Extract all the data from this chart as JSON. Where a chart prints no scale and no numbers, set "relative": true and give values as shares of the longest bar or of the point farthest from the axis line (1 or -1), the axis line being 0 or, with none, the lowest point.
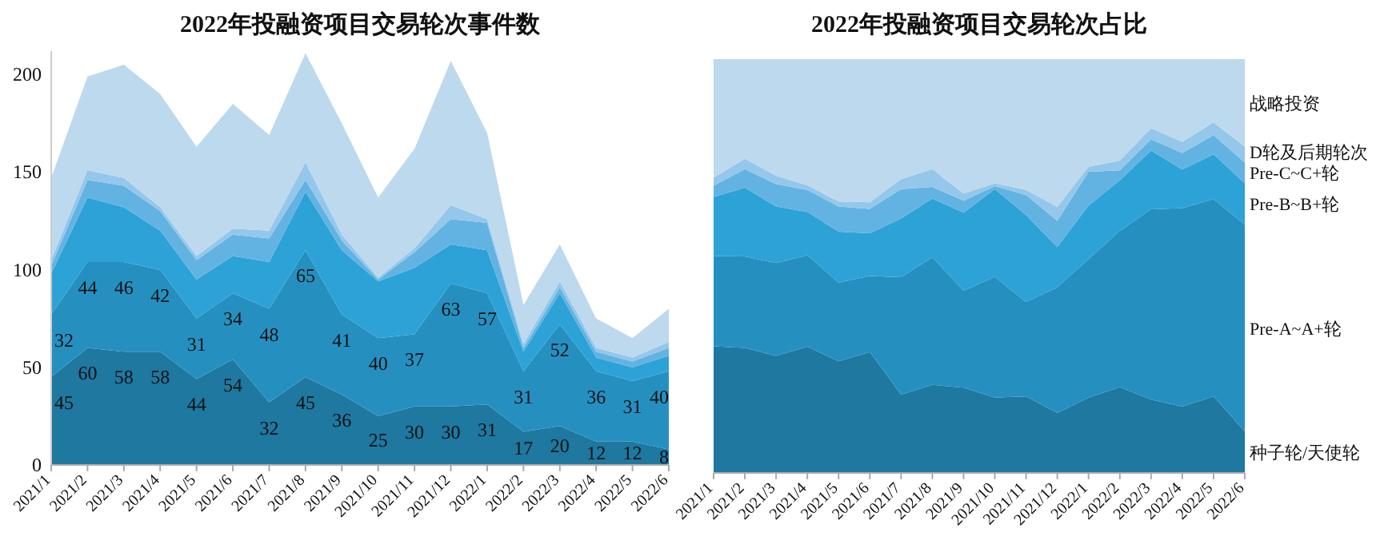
{
  "chart_data": [
    {
      "type": "area",
      "title": "2022年投融资项目交易轮次事件数",
      "stacked": true,
      "categories": [
        "2021/1",
        "2021/2",
        "2021/3",
        "2021/4",
        "2021/5",
        "2021/6",
        "2021/7",
        "2021/8",
        "2021/9",
        "2021/10",
        "2021/11",
        "2021/12",
        "2022/1",
        "2022/2",
        "2022/3",
        "2022/4",
        "2022/5",
        "2022/6"
      ],
      "series": [
        {
          "color": "#1e78a0",
          "values": [
            45,
            60,
            58,
            58,
            44,
            54,
            32,
            45,
            36,
            25,
            30,
            30,
            31,
            17,
            20,
            12,
            12,
            8
          ],
          "value_labels": [
            "45",
            "60",
            "58",
            "58",
            "44",
            "54",
            "32",
            "45",
            "36",
            "25",
            "30",
            "30",
            "31",
            "17",
            "20",
            "12",
            "12",
            "8"
          ]
        },
        {
          "color": "#2590c0",
          "values": [
            32,
            44,
            46,
            42,
            31,
            34,
            48,
            65,
            41,
            40,
            37,
            63,
            57,
            31,
            52,
            36,
            31,
            40
          ],
          "value_labels": [
            "32",
            "44",
            "46",
            "42",
            "31",
            "34",
            "48",
            "65",
            "41",
            "40",
            "37",
            "63",
            "57",
            "31",
            "52",
            "36",
            "31",
            "40"
          ]
        },
        {
          "color": "#2da2d6",
          "values": [
            21,
            33,
            28,
            20,
            20,
            19,
            24,
            30,
            33,
            29,
            34,
            20,
            22,
            10,
            16,
            7,
            7,
            8
          ]
        },
        {
          "color": "#62b3e2",
          "values": [
            4,
            9,
            11,
            10,
            10,
            11,
            12,
            6,
            5,
            1,
            8,
            13,
            14,
            2,
            3,
            3,
            3,
            4
          ]
        },
        {
          "color": "#94c7ea",
          "values": [
            3,
            5,
            4,
            2,
            2,
            3,
            4,
            9,
            3,
            1,
            2,
            7,
            2,
            2,
            3,
            2,
            2,
            3
          ]
        },
        {
          "color": "#bdd9ee",
          "values": [
            42,
            48,
            58,
            58,
            56,
            64,
            49,
            56,
            57,
            41,
            51,
            74,
            44,
            20,
            19,
            15,
            10,
            17
          ]
        }
      ],
      "ylim": [
        0,
        212
      ],
      "yticks": [
        0,
        50,
        100,
        150,
        200
      ],
      "grid": false
    },
    {
      "type": "area",
      "title": "2022年投融资项目交易轮次占比",
      "stacked": true,
      "relative": true,
      "categories": [
        "2021/1",
        "2021/2",
        "2021/3",
        "2021/4",
        "2021/5",
        "2021/6",
        "2021/7",
        "2021/8",
        "2021/9",
        "2021/10",
        "2021/11",
        "2021/12",
        "2022/1",
        "2022/2",
        "2022/3",
        "2022/4",
        "2022/5",
        "2022/6"
      ],
      "series": [
        {
          "name": "种子轮/天使轮",
          "color": "#1e78a0",
          "values": [
            0.306,
            0.302,
            0.283,
            0.305,
            0.27,
            0.292,
            0.189,
            0.213,
            0.206,
            0.182,
            0.185,
            0.145,
            0.182,
            0.207,
            0.177,
            0.16,
            0.185,
            0.1
          ]
        },
        {
          "name": "Pre-A~A+轮",
          "color": "#2590c0",
          "values": [
            0.218,
            0.221,
            0.224,
            0.221,
            0.19,
            0.184,
            0.284,
            0.308,
            0.234,
            0.292,
            0.228,
            0.304,
            0.335,
            0.378,
            0.46,
            0.48,
            0.477,
            0.5
          ]
        },
        {
          "name": "Pre-B~B+轮",
          "color": "#2da2d6",
          "values": [
            0.143,
            0.166,
            0.137,
            0.105,
            0.123,
            0.103,
            0.142,
            0.142,
            0.189,
            0.212,
            0.21,
            0.097,
            0.129,
            0.122,
            0.142,
            0.093,
            0.108,
            0.1
          ]
        },
        {
          "name": "Pre-C~C+轮",
          "color": "#62b3e2",
          "values": [
            0.027,
            0.045,
            0.054,
            0.053,
            0.061,
            0.059,
            0.071,
            0.028,
            0.029,
            0.007,
            0.049,
            0.063,
            0.082,
            0.024,
            0.027,
            0.04,
            0.046,
            0.05
          ]
        },
        {
          "name": "D轮及后期轮次",
          "color": "#94c7ea",
          "values": [
            0.02,
            0.025,
            0.02,
            0.011,
            0.012,
            0.016,
            0.024,
            0.043,
            0.017,
            0.007,
            0.012,
            0.034,
            0.012,
            0.024,
            0.027,
            0.027,
            0.031,
            0.038
          ]
        },
        {
          "name": "战略投资",
          "color": "#bdd9ee",
          "values": [
            0.286,
            0.241,
            0.282,
            0.305,
            0.344,
            0.346,
            0.29,
            0.266,
            0.325,
            0.3,
            0.316,
            0.357,
            0.26,
            0.245,
            0.167,
            0.2,
            0.153,
            0.212
          ]
        }
      ],
      "grid": false
    }
  ]
}
